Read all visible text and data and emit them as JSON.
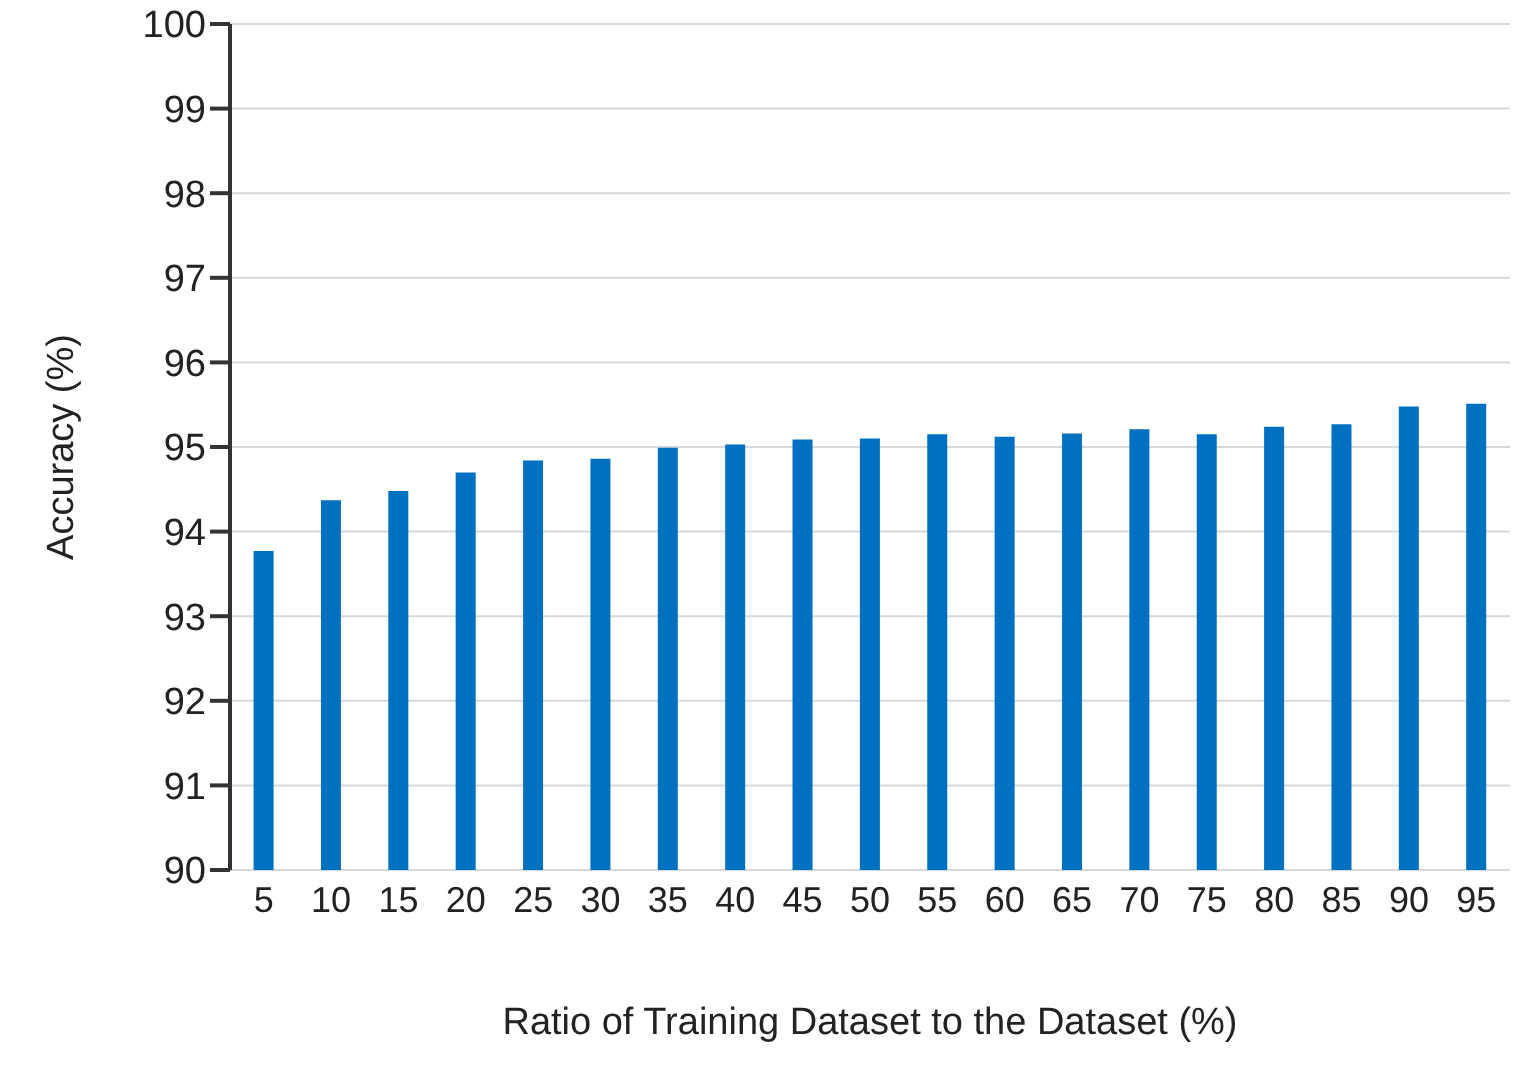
{
  "chart_data": {
    "type": "bar",
    "xlabel": "Ratio of Training Dataset to the Dataset (%)",
    "ylabel": "Accuracy (%)",
    "categories": [
      "5",
      "10",
      "15",
      "20",
      "25",
      "30",
      "35",
      "40",
      "45",
      "50",
      "55",
      "60",
      "65",
      "70",
      "75",
      "80",
      "85",
      "90",
      "95"
    ],
    "values": [
      93.77,
      94.37,
      94.48,
      94.7,
      94.84,
      94.86,
      94.99,
      95.03,
      95.09,
      95.1,
      95.15,
      95.12,
      95.16,
      95.21,
      95.15,
      95.24,
      95.27,
      95.48,
      95.51
    ],
    "color": "#0070c0",
    "ylim": [
      90,
      100
    ],
    "yticks": [
      90,
      91,
      92,
      93,
      94,
      95,
      96,
      97,
      98,
      99,
      100
    ],
    "grid": "y"
  }
}
